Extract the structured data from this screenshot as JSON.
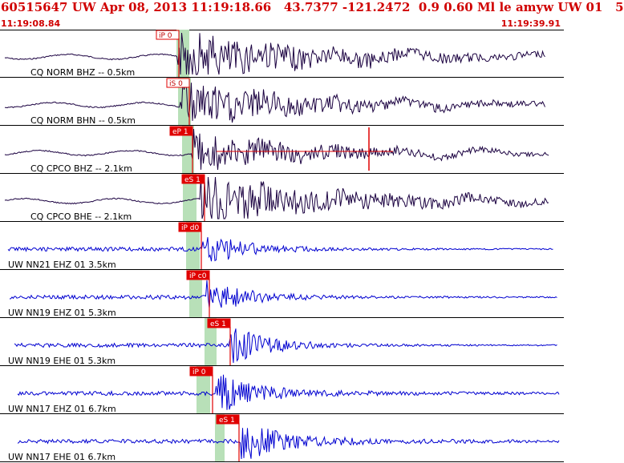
{
  "header": {
    "title": "60515647 UW Apr 08, 2013 11:19:18.66   43.7377 -121.2472  0.9 0.60 Ml le amyw UW 01   5",
    "start_time": "11:19:08.84",
    "end_time": "11:19:39.91"
  },
  "colors": {
    "header_text": "#d00000",
    "short_period_trace": "#1a0040",
    "broadband_trace": "#0000d0",
    "pick_box": "#e00000",
    "pick_band": "#b8e0b8",
    "panel_line": "#000000"
  },
  "chart_data": {
    "type": "seismogram",
    "x_start": "11:19:08.84",
    "x_end": "11:19:39.91",
    "traces": [
      {
        "label": "CQ NORM BHZ -- 0.5km",
        "color_key": "short_period_trace",
        "pick": "iP 0",
        "pick_style": "outline"
      },
      {
        "label": "CQ NORM BHN -- 0.5km",
        "color_key": "short_period_trace",
        "pick": "iS 0",
        "pick_style": "outline"
      },
      {
        "label": "CQ CPCO BHZ -- 2.1km",
        "color_key": "short_period_trace",
        "pick": "eP 1",
        "pick_style": "filled"
      },
      {
        "label": "CQ CPCO BHE -- 2.1km",
        "color_key": "short_period_trace",
        "pick": "eS 1",
        "pick_style": "filled"
      },
      {
        "label": "UW NN21 EHZ 01 3.5km",
        "color_key": "broadband_trace",
        "pick": "iP d0",
        "pick_style": "filled"
      },
      {
        "label": "UW NN19 EHZ 01 5.3km",
        "color_key": "broadband_trace",
        "pick": "iP c0",
        "pick_style": "filled"
      },
      {
        "label": "UW NN19 EHE 01 5.3km",
        "color_key": "broadband_trace",
        "pick": "eS 1",
        "pick_style": "filled"
      },
      {
        "label": "UW NN17 EHZ 01 6.7km",
        "color_key": "broadband_trace",
        "pick": "iP 0",
        "pick_style": "filled"
      },
      {
        "label": "UW NN17 EHE 01 6.7km",
        "color_key": "broadband_trace",
        "pick": "eS 1",
        "pick_style": "filled"
      }
    ]
  }
}
